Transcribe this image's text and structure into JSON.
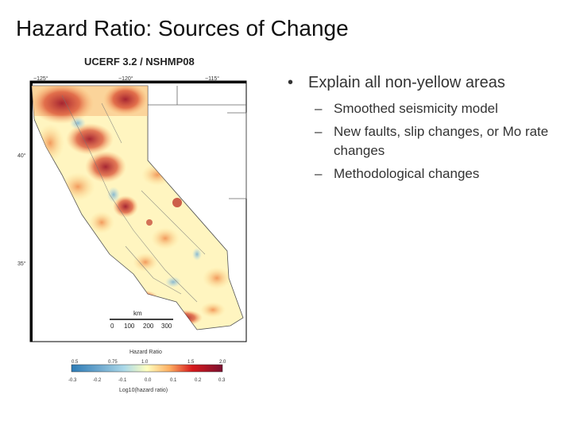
{
  "slide": {
    "title": "Hazard Ratio: Sources of Change"
  },
  "map": {
    "title": "UCERF 3.2 / NSHMP08",
    "lon_labels": [
      "−125°",
      "−120°",
      "−115°"
    ],
    "lat_labels": [
      "40°",
      "35°"
    ],
    "scale_unit": "km",
    "scale_ticks": [
      "0",
      "100",
      "200",
      "300"
    ],
    "legend_title": "Hazard Ratio",
    "legend_top_ticks": [
      "0.5",
      "0.75",
      "1.0",
      "1.5",
      "2.0"
    ],
    "legend_bottom_ticks": [
      "-0.3",
      "-0.2",
      "-0.1",
      "0.0",
      "0.1",
      "0.2",
      "0.3"
    ],
    "legend_xlabel": "Log10(hazard ratio)",
    "colors": {
      "low": "#2c7bb6",
      "mid": "#ffffbf",
      "high": "#8b1a1a",
      "accent_red": "#c0392b"
    }
  },
  "bullets": {
    "main": "Explain all non-yellow areas",
    "marker": "•",
    "sub_marker": "–",
    "sub": [
      "Smoothed seismicity model",
      "New faults, slip changes, or Mo rate changes",
      "Methodological changes"
    ]
  }
}
